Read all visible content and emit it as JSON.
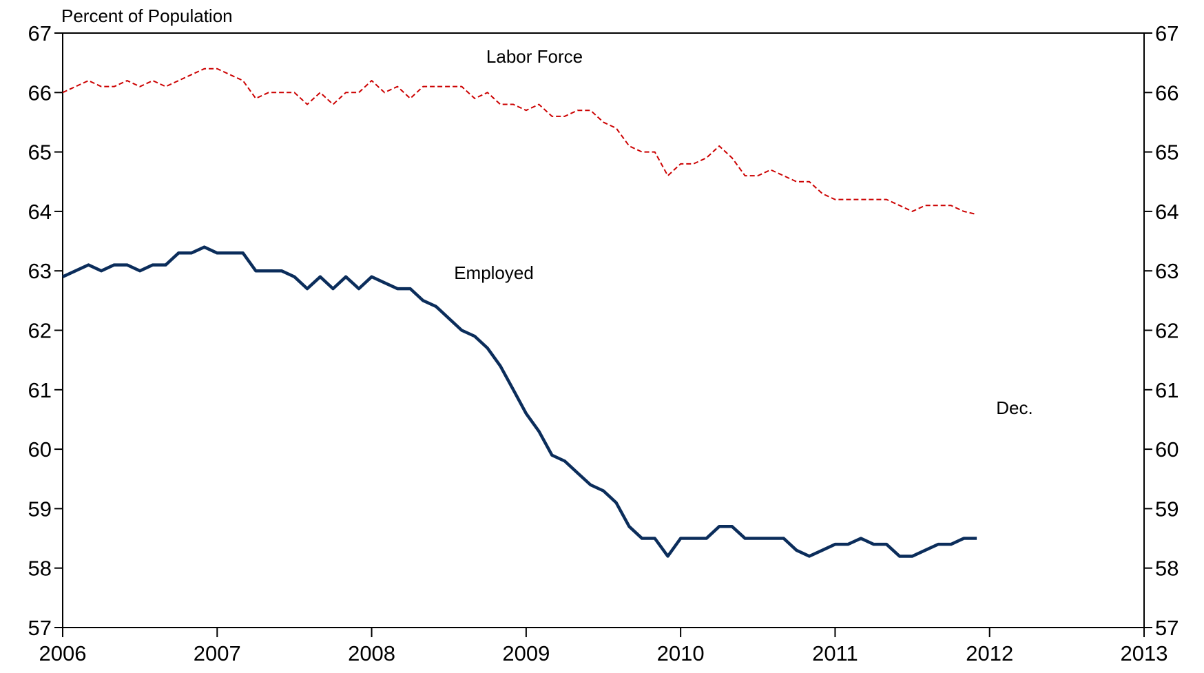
{
  "chart_data": {
    "type": "line",
    "y_label": "Percent of Population",
    "annotations": [
      "Labor Force",
      "Employed",
      "Dec."
    ],
    "x": [
      2006,
      2006.083,
      2006.167,
      2006.25,
      2006.333,
      2006.417,
      2006.5,
      2006.583,
      2006.667,
      2006.75,
      2006.833,
      2006.917,
      2007,
      2007.083,
      2007.167,
      2007.25,
      2007.333,
      2007.417,
      2007.5,
      2007.583,
      2007.667,
      2007.75,
      2007.833,
      2007.917,
      2008,
      2008.083,
      2008.167,
      2008.25,
      2008.333,
      2008.417,
      2008.5,
      2008.583,
      2008.667,
      2008.75,
      2008.833,
      2008.917,
      2009,
      2009.083,
      2009.167,
      2009.25,
      2009.333,
      2009.417,
      2009.5,
      2009.583,
      2009.667,
      2009.75,
      2009.833,
      2009.917,
      2010,
      2010.083,
      2010.167,
      2010.25,
      2010.333,
      2010.417,
      2010.5,
      2010.583,
      2010.667,
      2010.75,
      2010.833,
      2010.917,
      2011,
      2011.083,
      2011.167,
      2011.25,
      2011.333,
      2011.417,
      2011.5,
      2011.583,
      2011.667,
      2011.75,
      2011.833,
      2011.917
    ],
    "series": [
      {
        "name": "Labor Force",
        "color": "#cc0000",
        "dashed": true,
        "values": [
          66.0,
          66.1,
          66.2,
          66.1,
          66.1,
          66.2,
          66.1,
          66.2,
          66.1,
          66.2,
          66.3,
          66.4,
          66.4,
          66.3,
          66.2,
          65.9,
          66.0,
          66.0,
          66.0,
          65.8,
          66.0,
          65.8,
          66.0,
          66.0,
          66.2,
          66.0,
          66.1,
          65.9,
          66.1,
          66.1,
          66.1,
          66.1,
          65.9,
          66.0,
          65.8,
          65.8,
          65.7,
          65.8,
          65.6,
          65.6,
          65.7,
          65.7,
          65.5,
          65.4,
          65.1,
          65.0,
          65.0,
          64.6,
          64.8,
          64.8,
          64.9,
          65.1,
          64.9,
          64.6,
          64.6,
          64.7,
          64.6,
          64.5,
          64.5,
          64.3,
          64.2,
          64.2,
          64.2,
          64.2,
          64.2,
          64.1,
          64.0,
          64.1,
          64.1,
          64.1,
          64.0,
          63.95
        ]
      },
      {
        "name": "Employed",
        "color": "#0b2d5b",
        "dashed": false,
        "values": [
          62.9,
          63.0,
          63.1,
          63.0,
          63.1,
          63.1,
          63.0,
          63.1,
          63.1,
          63.3,
          63.3,
          63.4,
          63.3,
          63.3,
          63.3,
          63.0,
          63.0,
          63.0,
          62.9,
          62.7,
          62.9,
          62.7,
          62.9,
          62.7,
          62.9,
          62.8,
          62.7,
          62.7,
          62.5,
          62.4,
          62.2,
          62.0,
          61.9,
          61.7,
          61.4,
          61.0,
          60.6,
          60.3,
          59.9,
          59.8,
          59.6,
          59.4,
          59.3,
          59.1,
          58.7,
          58.5,
          58.5,
          58.2,
          58.5,
          58.5,
          58.5,
          58.7,
          58.7,
          58.5,
          58.5,
          58.5,
          58.5,
          58.3,
          58.2,
          58.3,
          58.4,
          58.4,
          58.5,
          58.4,
          58.4,
          58.2,
          58.2,
          58.3,
          58.4,
          58.4,
          58.5,
          58.5
        ]
      }
    ],
    "xlim": [
      2006,
      2013
    ],
    "xticks": [
      2006,
      2007,
      2008,
      2009,
      2010,
      2011,
      2012,
      2013
    ],
    "ylim": [
      57,
      67
    ],
    "yticks": [
      57,
      58,
      59,
      60,
      61,
      62,
      63,
      64,
      65,
      66,
      67
    ],
    "y2lim": [
      57,
      67
    ],
    "y2ticks": [
      57,
      58,
      59,
      60,
      61,
      62,
      63,
      64,
      65,
      66,
      67
    ]
  }
}
